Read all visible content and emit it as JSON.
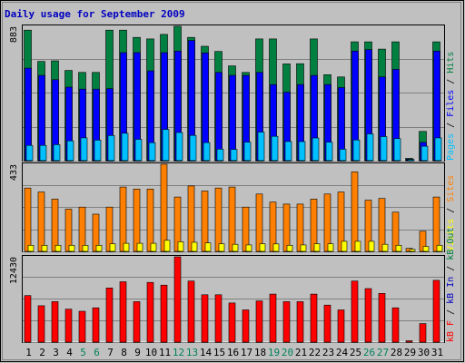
{
  "title": "Daily usage for September 2009",
  "colors": {
    "background": "#c0c0c0",
    "plot_bg": "#c0c0c0",
    "grid": "#808080",
    "title": "#0000c0",
    "hits": "#008040",
    "files": "#0000ff",
    "pages": "#00c0ff",
    "visits": "#ffff00",
    "sites": "#ff8000",
    "kbytes": "#ff0000",
    "weekend_label": "#00805c",
    "weekday_label": "#000000",
    "kb_in": "#0000c0",
    "kb_out": "#008040"
  },
  "chart_data": [
    {
      "type": "bar",
      "panel": "hits-files-pages",
      "max_label": "883",
      "ylim": [
        0,
        883
      ],
      "grid": true,
      "legend_labels": [
        "Pages",
        "/",
        "Files",
        "/",
        "Hits"
      ],
      "categories": [
        "1",
        "2",
        "3",
        "4",
        "5",
        "6",
        "7",
        "8",
        "9",
        "10",
        "11",
        "12",
        "13",
        "14",
        "15",
        "16",
        "17",
        "18",
        "19",
        "20",
        "21",
        "22",
        "23",
        "24",
        "25",
        "26",
        "27",
        "28",
        "29",
        "30",
        "31"
      ],
      "series": [
        {
          "name": "Hits",
          "values": [
            858,
            652,
            656,
            593,
            580,
            580,
            858,
            858,
            810,
            800,
            830,
            883,
            810,
            752,
            718,
            623,
            580,
            800,
            800,
            636,
            637,
            800,
            565,
            550,
            781,
            781,
            733,
            781,
            15,
            192,
            781
          ]
        },
        {
          "name": "Files",
          "values": [
            608,
            560,
            532,
            483,
            470,
            470,
            473,
            710,
            710,
            590,
            710,
            720,
            790,
            708,
            580,
            560,
            560,
            580,
            500,
            450,
            500,
            560,
            500,
            480,
            720,
            730,
            550,
            600,
            10,
            120,
            720
          ]
        },
        {
          "name": "Pages",
          "values": [
            100,
            100,
            105,
            130,
            150,
            135,
            165,
            180,
            140,
            118,
            205,
            185,
            166,
            119,
            76,
            74,
            122,
            188,
            160,
            126,
            125,
            149,
            122,
            75,
            136,
            176,
            158,
            145,
            8,
            95,
            150
          ]
        }
      ]
    },
    {
      "type": "bar",
      "panel": "visits-sites",
      "max_label": "433",
      "ylim": [
        0,
        433
      ],
      "grid": true,
      "legend_labels": [
        "Visits",
        "/",
        "Sites"
      ],
      "categories": [
        "1",
        "2",
        "3",
        "4",
        "5",
        "6",
        "7",
        "8",
        "9",
        "10",
        "11",
        "12",
        "13",
        "14",
        "15",
        "16",
        "17",
        "18",
        "19",
        "20",
        "21",
        "22",
        "23",
        "24",
        "25",
        "26",
        "27",
        "28",
        "29",
        "30",
        "31"
      ],
      "series": [
        {
          "name": "Visits",
          "values": [
            30,
            30,
            30,
            30,
            30,
            30,
            38,
            40,
            40,
            40,
            55,
            48,
            45,
            42,
            38,
            35,
            32,
            38,
            37,
            30,
            32,
            38,
            38,
            50,
            50,
            50,
            35,
            30,
            10,
            25,
            30
          ]
        },
        {
          "name": "Sites",
          "values": [
            315,
            295,
            260,
            210,
            220,
            185,
            220,
            320,
            310,
            310,
            433,
            270,
            325,
            300,
            315,
            320,
            220,
            285,
            245,
            235,
            235,
            260,
            285,
            295,
            395,
            255,
            263,
            195,
            15,
            100,
            270
          ]
        }
      ]
    },
    {
      "type": "bar",
      "panel": "kbytes",
      "max_label": "12430",
      "ylim": [
        0,
        12430
      ],
      "grid": true,
      "legend_labels": [
        "kB F",
        "/",
        "kB In",
        "/",
        "kB Out"
      ],
      "categories": [
        "1",
        "2",
        "3",
        "4",
        "5",
        "6",
        "7",
        "8",
        "9",
        "10",
        "11",
        "12",
        "13",
        "14",
        "15",
        "16",
        "17",
        "18",
        "19",
        "20",
        "21",
        "22",
        "23",
        "24",
        "25",
        "26",
        "27",
        "28",
        "29",
        "30",
        "31"
      ],
      "series": [
        {
          "name": "kB F",
          "values": [
            6790,
            5300,
            5900,
            4800,
            4500,
            5000,
            7900,
            8800,
            5900,
            8700,
            8300,
            12430,
            8900,
            6900,
            6900,
            5700,
            4700,
            6000,
            7000,
            5900,
            5900,
            7000,
            5400,
            4700,
            8900,
            7800,
            7100,
            5000,
            200,
            2700,
            9000
          ]
        }
      ]
    }
  ]
}
